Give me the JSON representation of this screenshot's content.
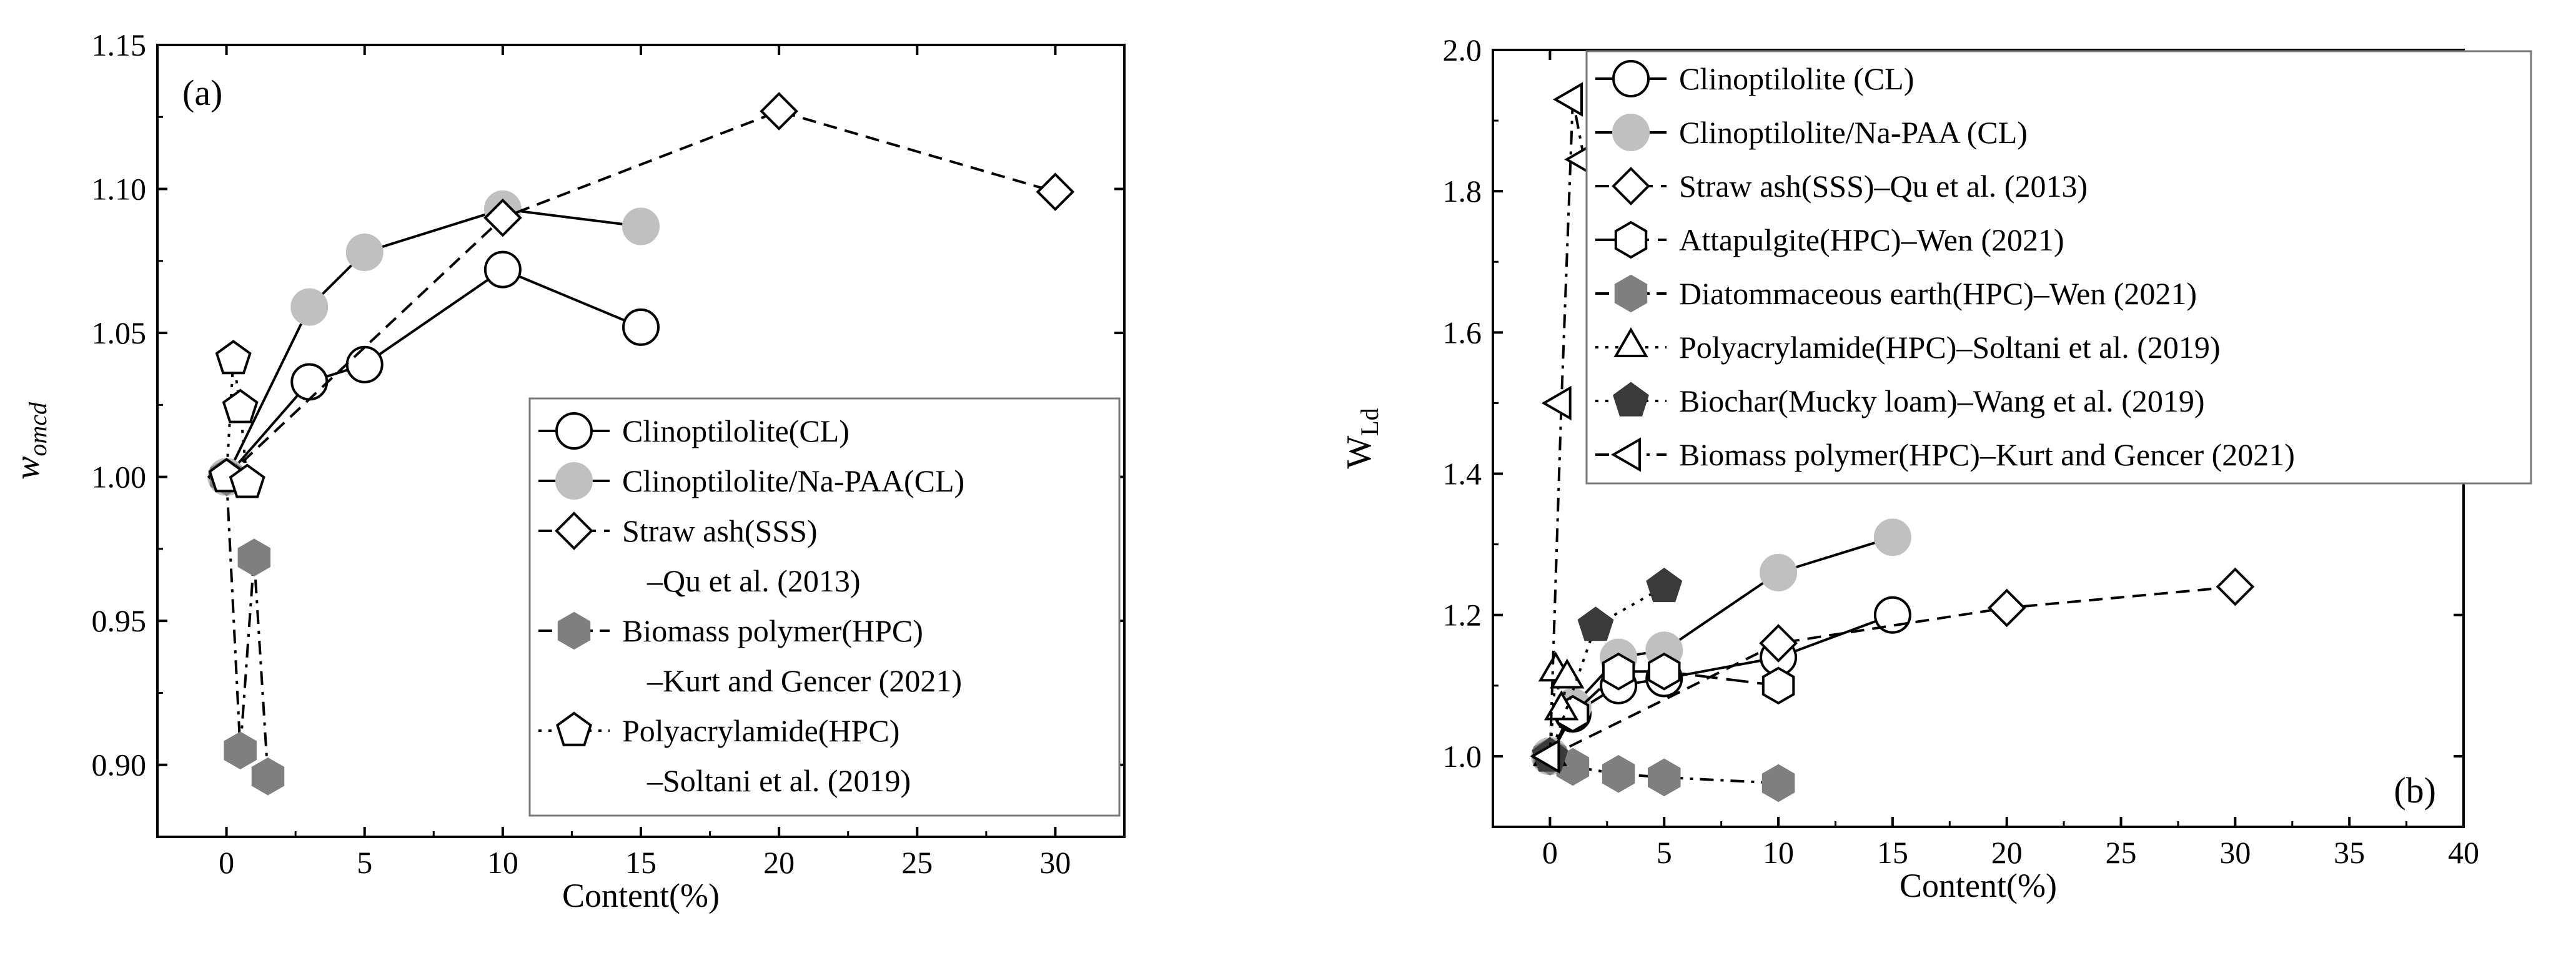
{
  "chart_data": [
    {
      "panel_label": "(a)",
      "type": "line",
      "xlabel": "Content(%)",
      "ylabel": "w",
      "ylabel_sub": "omcd",
      "xlim": [
        -2.5,
        32.5
      ],
      "ylim": [
        0.875,
        1.15
      ],
      "xticks": [
        0,
        5,
        10,
        15,
        20,
        25,
        30
      ],
      "yticks": [
        0.9,
        0.95,
        1.0,
        1.05,
        1.1,
        1.15
      ],
      "xtick_labels": [
        "0",
        "5",
        "10",
        "15",
        "20",
        "25",
        "30"
      ],
      "ytick_labels": [
        "0.90",
        "0.95",
        "1.00",
        "1.05",
        "1.10",
        "1.15"
      ],
      "legend_position": "lower-right",
      "series": [
        {
          "name": "Clinoptilolite(CL)",
          "marker": "circle",
          "fill": "#ffffff",
          "line": "solid",
          "x": [
            0,
            3,
            5,
            10,
            15
          ],
          "y": [
            1.0,
            1.033,
            1.039,
            1.072,
            1.052
          ]
        },
        {
          "name": "Clinoptilolite/Na-PAA(CL)",
          "marker": "circle",
          "fill": "#c0c0c0",
          "line": "solid",
          "x": [
            0,
            3,
            5,
            10,
            15
          ],
          "y": [
            1.0,
            1.059,
            1.078,
            1.093,
            1.087
          ]
        },
        {
          "name": "Straw ash(SSS)",
          "name2": "–Qu et al. (2013)",
          "marker": "diamond",
          "fill": "#ffffff",
          "line": "dash",
          "x": [
            0,
            10,
            20,
            30
          ],
          "y": [
            1.0,
            1.09,
            1.127,
            1.099
          ]
        },
        {
          "name": "Biomass polymer(HPC)",
          "name2": "–Kurt and Gencer (2021)",
          "marker": "hexagon",
          "fill": "#7f7f7f",
          "line": "dashdot",
          "x": [
            0,
            0.5,
            1.0,
            1.5
          ],
          "y": [
            1.0,
            0.905,
            0.972,
            0.896
          ]
        },
        {
          "name": "Polyacrylamide(HPC)",
          "name2": "–Soltani et al. (2019)",
          "marker": "pentagon",
          "fill": "#ffffff",
          "line": "dot",
          "x": [
            0,
            0.25,
            0.5,
            0.75
          ],
          "y": [
            1.0,
            1.041,
            1.024,
            0.998
          ]
        }
      ]
    },
    {
      "panel_label": "(b)",
      "type": "line",
      "xlabel": "Content(%)",
      "ylabel": "W",
      "ylabel_sub": "Ld",
      "xlim": [
        -2.5,
        40
      ],
      "ylim": [
        0.9,
        2.0
      ],
      "xticks": [
        0,
        5,
        10,
        15,
        20,
        25,
        30,
        35,
        40
      ],
      "yticks": [
        1.0,
        1.2,
        1.4,
        1.6,
        1.8,
        2.0
      ],
      "xtick_labels": [
        "0",
        "5",
        "10",
        "15",
        "20",
        "25",
        "30",
        "35",
        "40"
      ],
      "ytick_labels": [
        "1.0",
        "1.2",
        "1.4",
        "1.6",
        "1.8",
        "2.0"
      ],
      "legend_position": "top-right",
      "series": [
        {
          "name": "Clinoptilolite (CL)",
          "marker": "circle",
          "fill": "#ffffff",
          "line": "solid",
          "x": [
            0,
            1,
            3,
            5,
            10,
            15
          ],
          "y": [
            1.0,
            1.06,
            1.1,
            1.11,
            1.14,
            1.2
          ]
        },
        {
          "name": "Clinoptilolite/Na-PAA (CL)",
          "marker": "circle",
          "fill": "#c0c0c0",
          "line": "solid",
          "x": [
            0,
            1,
            3,
            5,
            10,
            15
          ],
          "y": [
            1.0,
            1.07,
            1.14,
            1.15,
            1.26,
            1.31
          ]
        },
        {
          "name": "Straw ash(SSS)–Qu et al. (2013)",
          "marker": "diamond",
          "fill": "#ffffff",
          "line": "dash",
          "x": [
            0,
            10,
            20,
            30
          ],
          "y": [
            1.0,
            1.16,
            1.21,
            1.24
          ]
        },
        {
          "name": "Attapulgite(HPC)–Wen (2021)",
          "marker": "hexagon",
          "fill": "#ffffff",
          "line": "longdash",
          "x": [
            0,
            1,
            3,
            5,
            10
          ],
          "y": [
            1.0,
            1.06,
            1.12,
            1.12,
            1.1
          ]
        },
        {
          "name": "Diatommaceous earth(HPC)–Wen (2021)",
          "marker": "hexagon",
          "fill": "#7f7f7f",
          "line": "dashdot",
          "x": [
            0,
            1,
            3,
            5,
            10
          ],
          "y": [
            1.0,
            0.985,
            0.975,
            0.97,
            0.962
          ]
        },
        {
          "name": "Polyacrylamide(HPC)–Soltani et al. (2019)",
          "marker": "triangle-up",
          "fill": "#ffffff",
          "line": "dot",
          "x": [
            0,
            0.25,
            0.5,
            0.75
          ],
          "y": [
            1.0,
            1.12,
            1.065,
            1.11
          ]
        },
        {
          "name": "Biochar(Mucky loam)–Wang et al. (2019)",
          "marker": "pentagon",
          "fill": "#3a3a3a",
          "line": "dot",
          "x": [
            0,
            2,
            5
          ],
          "y": [
            1.0,
            1.185,
            1.24
          ]
        },
        {
          "name": "Biomass polymer(HPC)–Kurt and Gencer (2021)",
          "marker": "triangle-left",
          "fill": "#ffffff",
          "line": "dashdot",
          "x": [
            0,
            0.5,
            1.0,
            1.5
          ],
          "y": [
            1.0,
            1.5,
            1.93,
            1.845
          ]
        }
      ]
    }
  ]
}
